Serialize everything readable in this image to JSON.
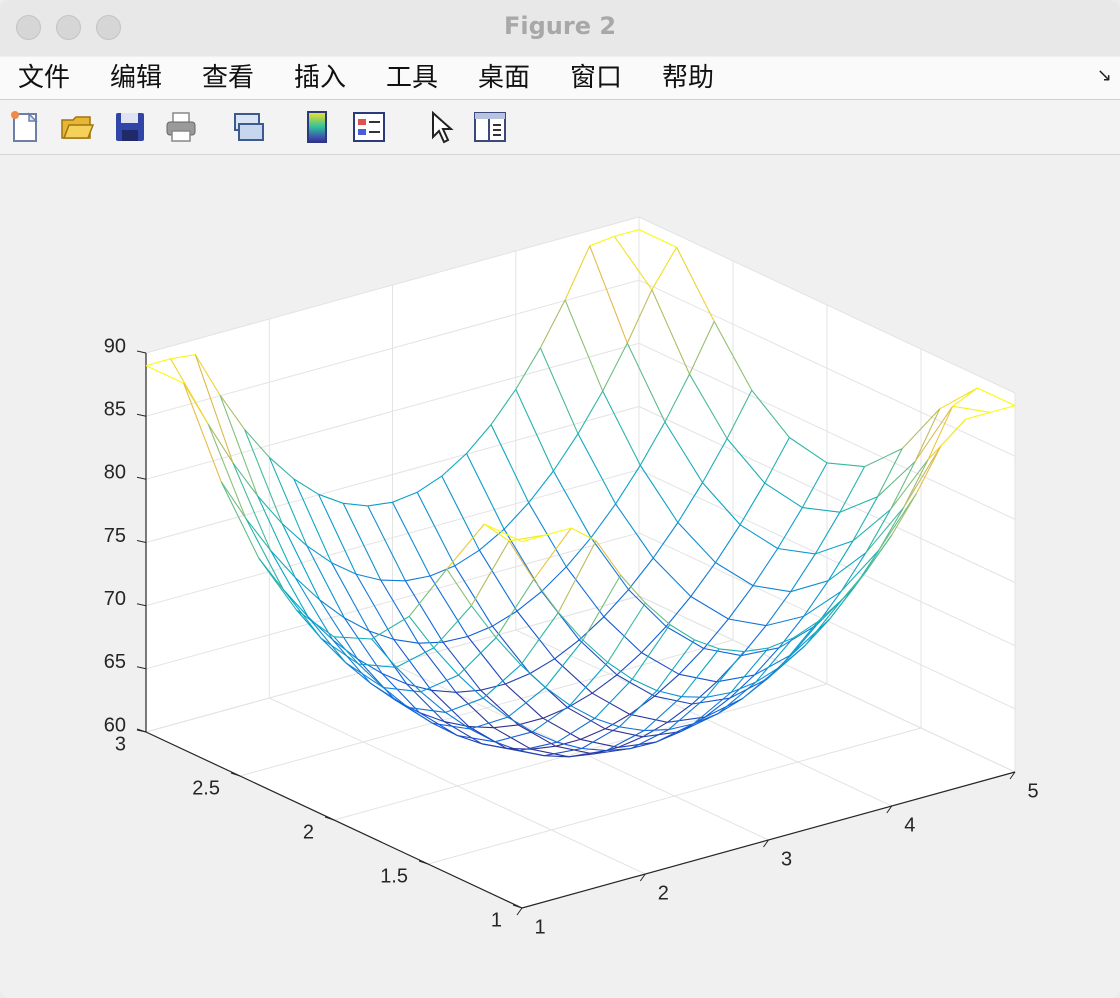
{
  "window": {
    "title": "Figure 2"
  },
  "menu": {
    "items": [
      "文件",
      "编辑",
      "查看",
      "插入",
      "工具",
      "桌面",
      "窗口",
      "帮助"
    ]
  },
  "toolbar": {
    "icons": [
      "new-figure-icon",
      "open-file-icon",
      "save-icon",
      "print-icon",
      "link-icon",
      "colorbar-icon",
      "legend-icon",
      "pointer-icon",
      "property-editor-icon"
    ]
  },
  "chart_data": {
    "type": "surface-mesh",
    "xlim": [
      1,
      5
    ],
    "ylim": [
      1,
      3
    ],
    "zlim": [
      60,
      90
    ],
    "x_ticks": [
      1,
      2,
      3,
      4,
      5
    ],
    "y_ticks": [
      1,
      1.5,
      2,
      2.5,
      3
    ],
    "z_ticks": [
      60,
      65,
      70,
      75,
      80,
      85,
      90
    ],
    "x_tick_labels": [
      "1",
      "2",
      "3",
      "4",
      "5"
    ],
    "y_tick_labels": [
      "1",
      "1.5",
      "2",
      "2.5",
      "3"
    ],
    "z_tick_labels": [
      "60",
      "65",
      "70",
      "75",
      "80",
      "85",
      "90"
    ],
    "grid": true,
    "colormap": "parula",
    "mesh": {
      "x_samples": 21,
      "y_samples": 11,
      "min_z_approx": 61,
      "max_z_approx": 89
    }
  }
}
